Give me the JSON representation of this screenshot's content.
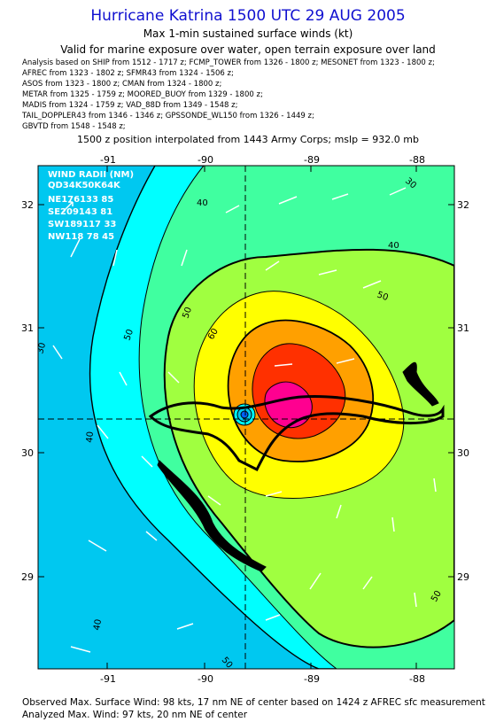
{
  "title": "Hurricane Katrina 1500 UTC 29 AUG 2005",
  "subtitle1": "Max 1-min sustained surface winds (kt)",
  "subtitle2": "Valid for marine exposure over water, open terrain exposure over land",
  "analysis_lines": [
    "Analysis based on  SHIP from 1512 - 1717 z;  FCMP_TOWER from 1326 - 1800 z;  MESONET from 1323 - 1800 z;",
    "AFREC from 1323 - 1802 z;  SFMR43 from 1324 - 1506 z;",
    "ASOS from 1323 - 1800 z;  CMAN from 1324 - 1800 z;",
    "METAR from 1325 - 1759 z;  MOORED_BUOY from 1329 - 1800 z;",
    "MADIS from 1324 - 1759 z;  VAD_88D from 1349 - 1548 z;",
    "TAIL_DOPPLER43 from 1346 - 1346 z;  GPSSONDE_WL150 from 1326 - 1449 z;",
    "GBVTD from 1548 - 1548 z;"
  ],
  "position_note": "1500 z position interpolated from 1443 Army Corps; mslp = 932.0 mb",
  "map": {
    "lon_ticks": [
      "-91",
      "-90",
      "-89",
      "-88"
    ],
    "lat_ticks": [
      "32",
      "31",
      "30",
      "29"
    ],
    "contour_labels": [
      "30",
      "40",
      "40",
      "50",
      "50",
      "60",
      "50",
      "40",
      "50",
      "30",
      "40",
      "50"
    ],
    "wind_radii": {
      "header": "WIND RADII (NM)",
      "columns": "QD34K50K64K",
      "rows": [
        "NE176133 85",
        "SE209143 81",
        "SW189117 33",
        "NW118 78 45"
      ]
    },
    "colors": {
      "lt30": "#00c8f0",
      "30to40": "#00ffff",
      "40to50": "#40ffa0",
      "50to60": "#a0ff40",
      "60to64": "#ffff00",
      "64to80": "#ffa000",
      "80to90": "#ff3000",
      "gt90": "#ff0090",
      "land": "#000000"
    }
  },
  "observed_max": "Observed Max. Surface Wind: 98 kts, 17 nm NE of center based on 1424 z AFREC sfc measurement",
  "analyzed_max": "Analyzed Max. Wind: 97 kts, 20 nm NE of center"
}
